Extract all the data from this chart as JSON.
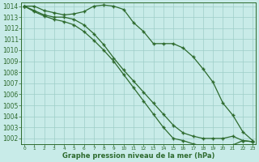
{
  "x": [
    0,
    1,
    2,
    3,
    4,
    5,
    6,
    7,
    8,
    9,
    10,
    11,
    12,
    13,
    14,
    15,
    16,
    17,
    18,
    19,
    20,
    21,
    22,
    23
  ],
  "series1": [
    1014.0,
    1014.0,
    1013.6,
    1013.4,
    1013.2,
    1013.3,
    1013.5,
    1014.0,
    1014.1,
    1014.0,
    1013.7,
    1012.5,
    1011.7,
    1010.6,
    1010.6,
    1010.6,
    1010.2,
    1009.4,
    1008.3,
    1007.1,
    1005.2,
    1004.1,
    1002.6,
    1001.8
  ],
  "series2": [
    1014.0,
    1013.6,
    1013.2,
    1013.0,
    1013.0,
    1012.8,
    1012.3,
    1011.5,
    1010.5,
    1009.3,
    1008.2,
    1007.2,
    1006.2,
    1005.2,
    1004.2,
    1003.2,
    1002.5,
    1002.2,
    1002.0,
    1002.0,
    1002.0,
    1002.2,
    1001.8,
    1001.7
  ],
  "series3": [
    1014.0,
    1013.5,
    1013.1,
    1012.8,
    1012.6,
    1012.3,
    1011.7,
    1010.9,
    1010.0,
    1009.0,
    1007.8,
    1006.6,
    1005.4,
    1004.2,
    1003.0,
    1002.0,
    1001.8,
    1001.5,
    1001.3,
    1001.2,
    1001.2,
    1001.4,
    1001.8,
    1001.7
  ],
  "ylim": [
    1001.5,
    1014.3
  ],
  "xlim": [
    -0.3,
    23.3
  ],
  "yticks": [
    1002,
    1003,
    1004,
    1005,
    1006,
    1007,
    1008,
    1009,
    1010,
    1011,
    1012,
    1013,
    1014
  ],
  "xticks": [
    0,
    1,
    2,
    3,
    4,
    5,
    6,
    7,
    8,
    9,
    10,
    11,
    12,
    13,
    14,
    15,
    16,
    17,
    18,
    19,
    20,
    21,
    22,
    23
  ],
  "line_color": "#2d6a2d",
  "bg_color": "#c8ebe8",
  "grid_color": "#9ecec8",
  "xlabel": "Graphe pression niveau de la mer (hPa)",
  "ytick_fontsize": 5.5,
  "xtick_fontsize": 4.2,
  "xlabel_fontsize": 6.0
}
